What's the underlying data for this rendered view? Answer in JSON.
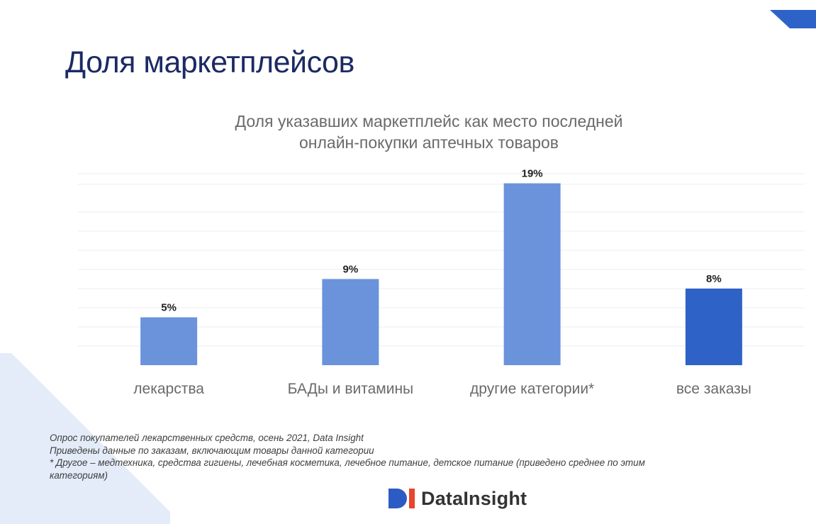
{
  "slide": {
    "title": "Доля маркетплейсов"
  },
  "chart_data": {
    "type": "bar",
    "title_lines": [
      "Доля указавших маркетплейс как место последней",
      "онлайн-покупки аптечных товаров"
    ],
    "categories": [
      "лекарства",
      "БАДы и витамины",
      "другие категории*",
      "все заказы"
    ],
    "values": [
      5,
      9,
      19,
      8
    ],
    "value_labels": [
      "5%",
      "9%",
      "19%",
      "8%"
    ],
    "bar_colors": [
      "#6b93dc",
      "#6b93dc",
      "#6b93dc",
      "#2e62c6"
    ],
    "ylim": [
      0,
      20
    ],
    "grid": true,
    "legend": "none"
  },
  "notes": [
    "Опрос покупателей лекарственных средств, осень 2021, Data Insight",
    "Приведены данные по заказам, включающим товары данной категории",
    "* Другое – медтехника, средства гигиены, лечебная косметика, лечебное питание, детское питание (приведено среднее по этим",
    "категориям)"
  ],
  "logo": {
    "text": "DataInsight",
    "mark_color": "#2c5bc4",
    "mark_accent": "#e8452c"
  },
  "colors": {
    "title": "#1c2a64",
    "deco": "#2d63c8",
    "deco_light": "#dfe9f6"
  }
}
